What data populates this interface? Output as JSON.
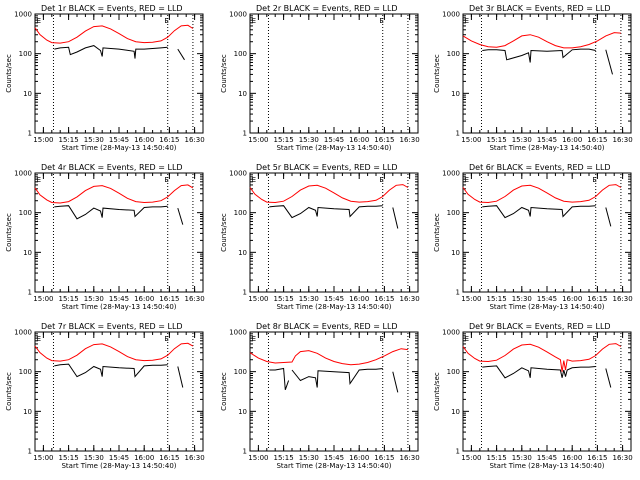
{
  "figure": {
    "xlabel": "Start Time (28-May-13 14:50:40)",
    "ylabel": "Counts/sec",
    "y_tick_labels": [
      "1",
      "10",
      "100",
      "1000"
    ],
    "x_tick_labels": [
      "15:00",
      "15:15",
      "15:30",
      "15:45",
      "16:00",
      "16:15",
      "16:30"
    ],
    "event_marker": "E",
    "colors": {
      "events": "#000000",
      "lld": "#ff0000",
      "axes": "#000000",
      "background": "#ffffff"
    }
  },
  "chart_data": [
    {
      "type": "line",
      "title": "Det 1r BLACK = Events, RED = LLD",
      "yscale": "log",
      "ylim": [
        1,
        1000
      ],
      "xlim_minutes": [
        5,
        105
      ],
      "event_markers_min": [
        6,
        82
      ],
      "vlines_min": [
        16,
        84,
        99
      ],
      "series": [
        {
          "name": "Events",
          "color": "#000000",
          "x": [
            16,
            16.5,
            20,
            25,
            26,
            30,
            35,
            40,
            44,
            45,
            45.5,
            55,
            64,
            64.5,
            65,
            70,
            75,
            80,
            84,
            84.5,
            90,
            94,
            94.5
          ],
          "y": [
            0,
            130,
            140,
            145,
            95,
            110,
            140,
            160,
            120,
            85,
            140,
            130,
            115,
            75,
            130,
            130,
            135,
            140,
            145,
            0,
            130,
            70,
            0
          ]
        },
        {
          "name": "LLD",
          "color": "#ff0000",
          "x": [
            5,
            8,
            12,
            15,
            20,
            25,
            30,
            35,
            40,
            45,
            50,
            55,
            60,
            65,
            70,
            75,
            80,
            84,
            88,
            92,
            96,
            99
          ],
          "y": [
            450,
            300,
            220,
            190,
            185,
            200,
            260,
            370,
            480,
            500,
            420,
            320,
            240,
            200,
            190,
            195,
            210,
            260,
            380,
            500,
            520,
            430
          ]
        }
      ]
    },
    {
      "type": "line",
      "title": "Det 2r BLACK = Events, RED = LLD",
      "yscale": "log",
      "ylim": [
        1,
        1000
      ],
      "xlim_minutes": [
        5,
        105
      ],
      "event_markers_min": [
        6,
        82
      ],
      "vlines_min": [
        16,
        84,
        99
      ],
      "series": []
    },
    {
      "type": "line",
      "title": "Det 3r BLACK = Events, RED = LLD",
      "yscale": "log",
      "ylim": [
        1,
        1000
      ],
      "xlim_minutes": [
        5,
        105
      ],
      "event_markers_min": [
        6,
        82
      ],
      "vlines_min": [
        16,
        84,
        99
      ],
      "series": [
        {
          "name": "Events",
          "color": "#000000",
          "x": [
            16,
            16.5,
            20,
            25,
            30,
            31,
            40,
            44,
            45,
            45.5,
            55,
            64,
            64.5,
            70,
            75,
            80,
            84,
            84.5,
            90,
            94,
            94.5
          ],
          "y": [
            0,
            120,
            125,
            125,
            120,
            70,
            90,
            105,
            60,
            120,
            115,
            120,
            80,
            125,
            130,
            130,
            120,
            0,
            125,
            30,
            0
          ]
        },
        {
          "name": "LLD",
          "color": "#ff0000",
          "x": [
            5,
            10,
            15,
            20,
            25,
            30,
            35,
            40,
            45,
            50,
            55,
            60,
            65,
            70,
            75,
            80,
            85,
            90,
            95,
            99
          ],
          "y": [
            280,
            210,
            170,
            150,
            145,
            160,
            210,
            280,
            300,
            260,
            200,
            160,
            140,
            140,
            150,
            170,
            210,
            280,
            340,
            330
          ]
        }
      ]
    },
    {
      "type": "line",
      "title": "Det 4r BLACK = Events, RED = LLD",
      "yscale": "log",
      "ylim": [
        1,
        1000
      ],
      "xlim_minutes": [
        5,
        105
      ],
      "event_markers_min": [
        6,
        82
      ],
      "vlines_min": [
        16,
        84,
        99
      ],
      "series": [
        {
          "name": "Events",
          "color": "#000000",
          "x": [
            16,
            16.5,
            20,
            25,
            30,
            35,
            40,
            44,
            45,
            45.5,
            55,
            64,
            64.5,
            70,
            75,
            80,
            84,
            84.5,
            90,
            93,
            93.5
          ],
          "y": [
            0,
            140,
            145,
            150,
            70,
            90,
            130,
            110,
            75,
            130,
            120,
            115,
            80,
            135,
            140,
            140,
            145,
            0,
            130,
            50,
            0
          ]
        },
        {
          "name": "LLD",
          "color": "#ff0000",
          "x": [
            5,
            8,
            12,
            15,
            20,
            25,
            30,
            35,
            40,
            45,
            50,
            55,
            60,
            65,
            70,
            75,
            80,
            84,
            88,
            92,
            96,
            99
          ],
          "y": [
            420,
            280,
            210,
            180,
            175,
            190,
            250,
            360,
            460,
            480,
            410,
            310,
            230,
            190,
            180,
            185,
            200,
            250,
            360,
            480,
            500,
            420
          ]
        }
      ]
    },
    {
      "type": "line",
      "title": "Det 5r BLACK = Events, RED = LLD",
      "yscale": "log",
      "ylim": [
        1,
        1000
      ],
      "xlim_minutes": [
        5,
        105
      ],
      "event_markers_min": [
        6,
        82
      ],
      "vlines_min": [
        16,
        84,
        99
      ],
      "series": [
        {
          "name": "Events",
          "color": "#000000",
          "x": [
            16,
            16.5,
            20,
            25,
            30,
            35,
            40,
            44,
            45,
            45.5,
            55,
            64,
            64.5,
            70,
            75,
            80,
            84,
            84.5,
            90,
            93,
            93.5
          ],
          "y": [
            0,
            140,
            145,
            150,
            75,
            95,
            135,
            115,
            80,
            135,
            125,
            120,
            80,
            140,
            145,
            145,
            150,
            0,
            135,
            40,
            0
          ]
        },
        {
          "name": "LLD",
          "color": "#ff0000",
          "x": [
            5,
            8,
            12,
            15,
            20,
            25,
            30,
            35,
            40,
            45,
            50,
            55,
            60,
            65,
            70,
            75,
            80,
            84,
            88,
            92,
            96,
            99
          ],
          "y": [
            430,
            290,
            215,
            185,
            180,
            195,
            255,
            370,
            470,
            490,
            415,
            315,
            235,
            195,
            185,
            190,
            205,
            255,
            370,
            490,
            510,
            430
          ]
        }
      ]
    },
    {
      "type": "line",
      "title": "Det 6r BLACK = Events, RED = LLD",
      "yscale": "log",
      "ylim": [
        1,
        1000
      ],
      "xlim_minutes": [
        5,
        105
      ],
      "event_markers_min": [
        6,
        82
      ],
      "vlines_min": [
        16,
        84,
        99
      ],
      "series": [
        {
          "name": "Events",
          "color": "#000000",
          "x": [
            16,
            16.5,
            20,
            25,
            30,
            35,
            40,
            44,
            45,
            45.5,
            55,
            64,
            64.5,
            70,
            75,
            80,
            84,
            84.5,
            90,
            93,
            93.5
          ],
          "y": [
            0,
            140,
            145,
            150,
            75,
            95,
            135,
            115,
            80,
            135,
            125,
            120,
            80,
            140,
            145,
            145,
            150,
            0,
            135,
            45,
            0
          ]
        },
        {
          "name": "LLD",
          "color": "#ff0000",
          "x": [
            5,
            8,
            12,
            15,
            20,
            25,
            30,
            35,
            40,
            45,
            50,
            55,
            60,
            65,
            70,
            75,
            80,
            84,
            88,
            92,
            96,
            99
          ],
          "y": [
            430,
            290,
            215,
            185,
            180,
            195,
            255,
            370,
            470,
            490,
            415,
            315,
            235,
            195,
            185,
            190,
            205,
            255,
            370,
            490,
            510,
            430
          ]
        }
      ]
    },
    {
      "type": "line",
      "title": "Det 7r BLACK = Events, RED = LLD",
      "yscale": "log",
      "ylim": [
        1,
        1000
      ],
      "xlim_minutes": [
        5,
        105
      ],
      "event_markers_min": [
        6,
        82
      ],
      "vlines_min": [
        16,
        84,
        99
      ],
      "series": [
        {
          "name": "Events",
          "color": "#000000",
          "x": [
            16,
            16.5,
            20,
            25,
            30,
            35,
            40,
            44,
            45,
            45.5,
            55,
            64,
            64.5,
            70,
            75,
            80,
            84,
            84.5,
            90,
            93,
            93.5
          ],
          "y": [
            0,
            140,
            150,
            155,
            75,
            95,
            135,
            115,
            75,
            135,
            125,
            120,
            75,
            140,
            145,
            145,
            150,
            0,
            135,
            40,
            0
          ]
        },
        {
          "name": "LLD",
          "color": "#ff0000",
          "x": [
            5,
            8,
            12,
            15,
            20,
            25,
            30,
            35,
            40,
            45,
            50,
            55,
            60,
            65,
            70,
            75,
            80,
            84,
            88,
            92,
            96,
            99
          ],
          "y": [
            440,
            300,
            220,
            190,
            185,
            200,
            260,
            380,
            480,
            500,
            420,
            320,
            240,
            200,
            190,
            195,
            210,
            260,
            380,
            500,
            520,
            440
          ]
        }
      ]
    },
    {
      "type": "line",
      "title": "Det 8r BLACK = Events, RED = LLD",
      "yscale": "log",
      "ylim": [
        1,
        1000
      ],
      "xlim_minutes": [
        5,
        105
      ],
      "event_markers_min": [
        6,
        82
      ],
      "vlines_min": [
        16,
        84,
        99
      ],
      "series": [
        {
          "name": "Events",
          "color": "#000000",
          "x": [
            16,
            16.5,
            20,
            25,
            26,
            28,
            28.5,
            30,
            35,
            40,
            44,
            45,
            45.5,
            55,
            64,
            64.5,
            70,
            75,
            80,
            84,
            84.5,
            90,
            93,
            93.5
          ],
          "y": [
            0,
            110,
            110,
            120,
            35,
            60,
            0,
            110,
            60,
            75,
            70,
            40,
            105,
            100,
            95,
            50,
            110,
            115,
            115,
            120,
            0,
            100,
            30,
            0
          ]
        },
        {
          "name": "LLD",
          "color": "#ff0000",
          "x": [
            5,
            10,
            15,
            20,
            25,
            30,
            32,
            35,
            40,
            45,
            50,
            55,
            60,
            65,
            70,
            75,
            80,
            85,
            90,
            95,
            99
          ],
          "y": [
            300,
            220,
            180,
            165,
            170,
            175,
            250,
            320,
            340,
            290,
            220,
            180,
            160,
            150,
            155,
            170,
            200,
            250,
            320,
            380,
            360
          ]
        }
      ]
    },
    {
      "type": "line",
      "title": "Det 9r BLACK = Events, RED = LLD",
      "yscale": "log",
      "ylim": [
        1,
        1000
      ],
      "xlim_minutes": [
        5,
        105
      ],
      "event_markers_min": [
        6,
        82
      ],
      "vlines_min": [
        16,
        84,
        99
      ],
      "series": [
        {
          "name": "Events",
          "color": "#000000",
          "x": [
            16,
            16.5,
            20,
            25,
            30,
            35,
            40,
            44,
            45,
            45.5,
            55,
            63,
            64,
            65,
            66,
            67,
            70,
            75,
            80,
            84,
            84.5,
            90,
            93,
            93.5
          ],
          "y": [
            0,
            130,
            135,
            140,
            70,
            90,
            125,
            105,
            70,
            125,
            115,
            110,
            70,
            110,
            75,
            110,
            125,
            130,
            130,
            135,
            0,
            120,
            40,
            0
          ]
        },
        {
          "name": "LLD",
          "color": "#ff0000",
          "x": [
            5,
            8,
            12,
            15,
            20,
            25,
            30,
            35,
            40,
            45,
            50,
            55,
            60,
            63,
            64,
            65,
            66,
            67,
            70,
            75,
            80,
            84,
            88,
            92,
            96,
            99
          ],
          "y": [
            430,
            290,
            215,
            185,
            180,
            195,
            255,
            370,
            470,
            490,
            415,
            315,
            235,
            200,
            100,
            190,
            110,
            200,
            185,
            190,
            205,
            255,
            370,
            490,
            510,
            430
          ]
        }
      ]
    }
  ]
}
